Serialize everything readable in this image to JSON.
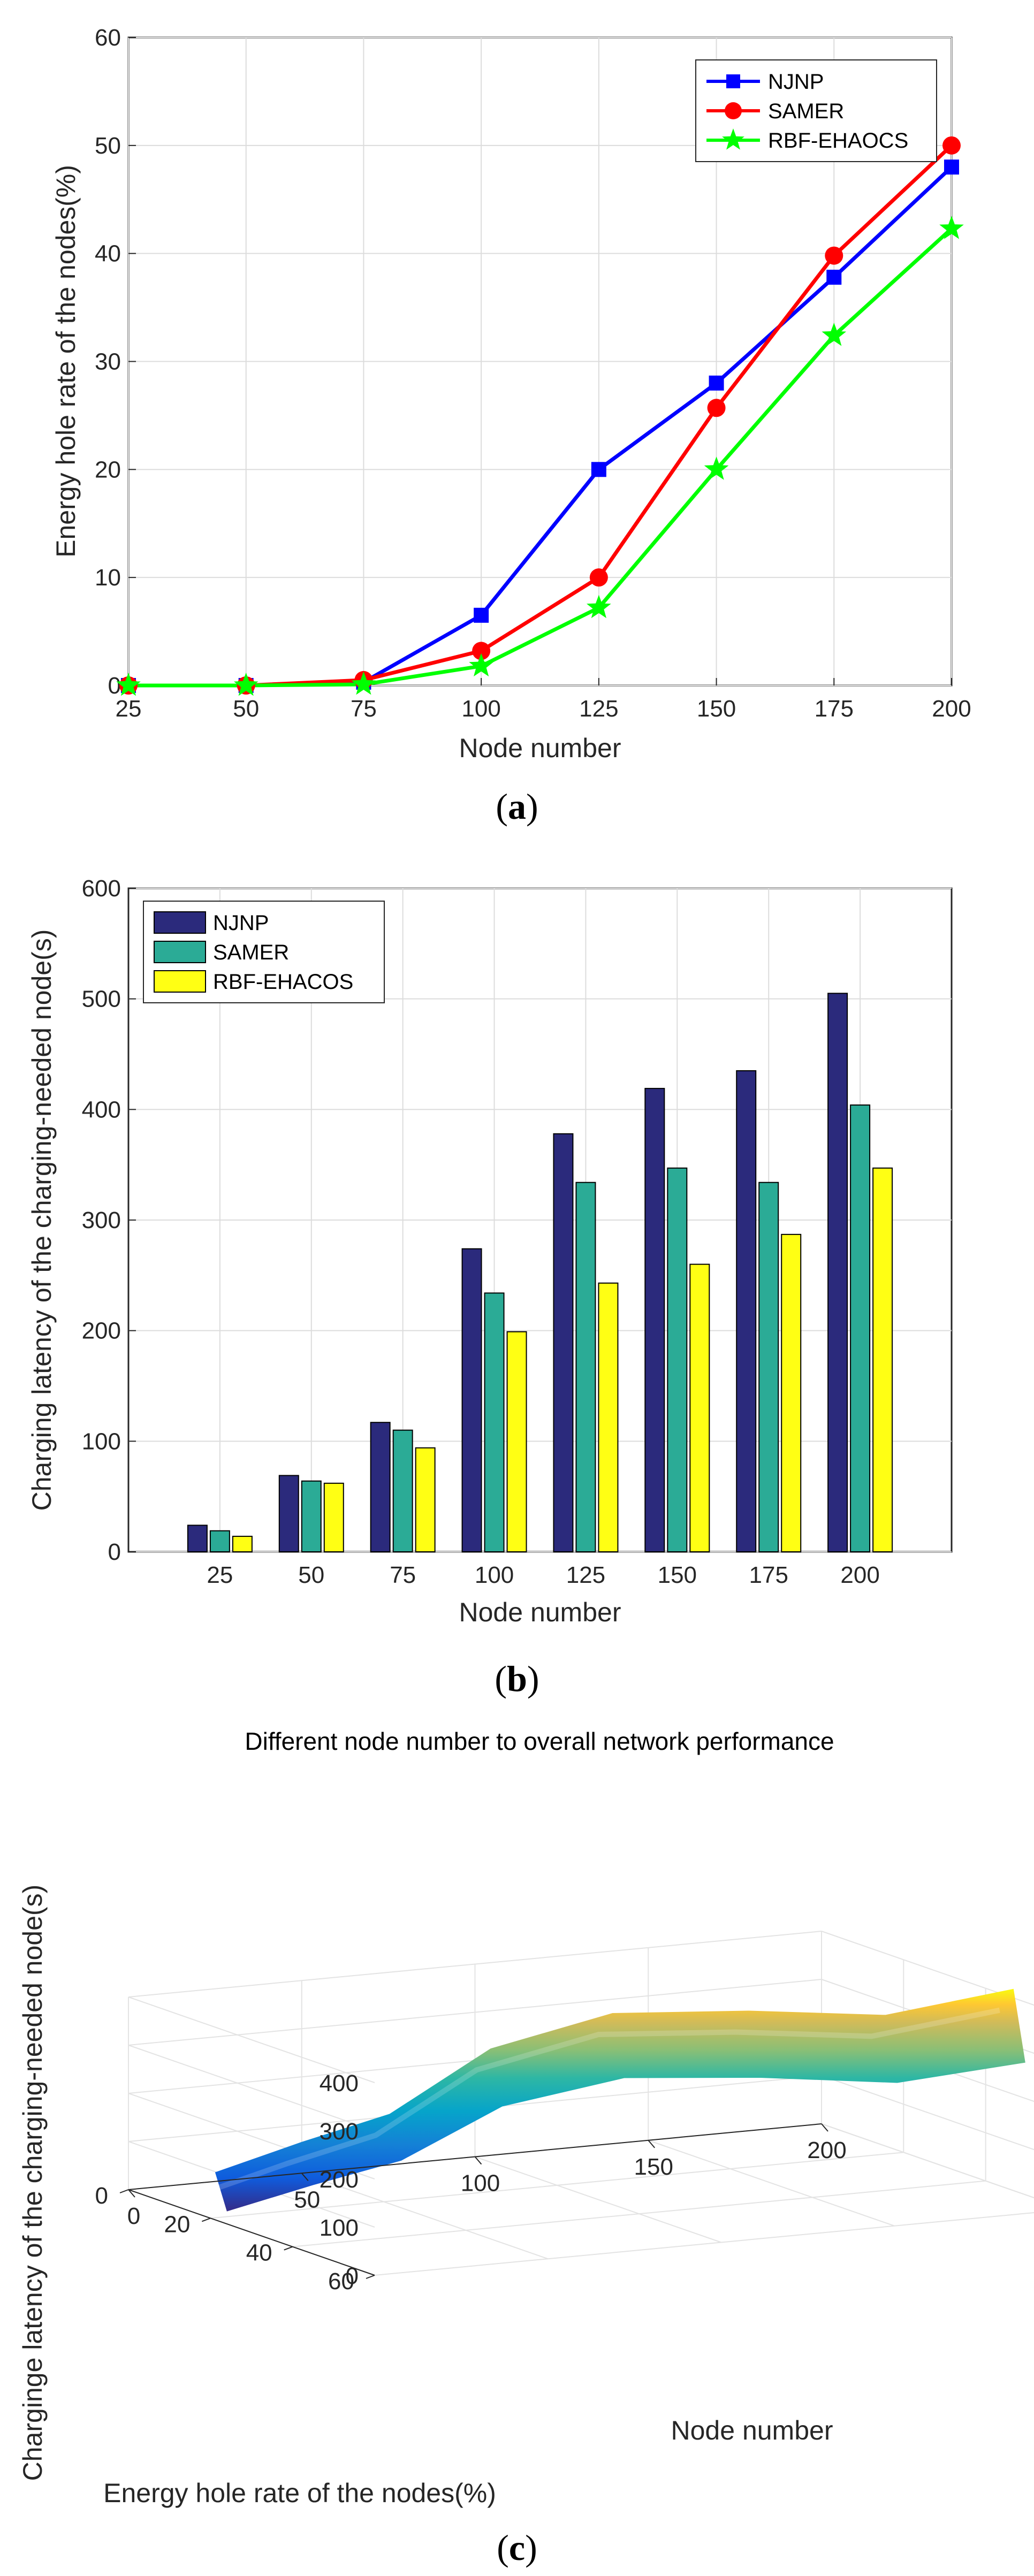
{
  "chart_data": [
    {
      "type": "line",
      "panel": "a",
      "caption": "a",
      "xlabel": "Node number",
      "ylabel": "Energy hole rate of the nodes(%)",
      "x": [
        25,
        50,
        75,
        100,
        125,
        150,
        175,
        200
      ],
      "x_ticks": [
        "25",
        "50",
        "75",
        "100",
        "125",
        "150",
        "175",
        "200"
      ],
      "y_ticks": [
        "0",
        "10",
        "20",
        "30",
        "40",
        "50",
        "60"
      ],
      "xlim": [
        25,
        200
      ],
      "ylim": [
        0,
        60
      ],
      "grid": true,
      "legend_position": "top-right",
      "series": [
        {
          "name": "NJNP",
          "color": "#0000ff",
          "marker": "square",
          "values": [
            0,
            0,
            0.3,
            6.5,
            20,
            28,
            37.8,
            48
          ]
        },
        {
          "name": "SAMER",
          "color": "#ff0000",
          "marker": "circle",
          "values": [
            0,
            0,
            0.5,
            3.2,
            10,
            25.7,
            39.8,
            50
          ]
        },
        {
          "name": "RBF-EHAOCS",
          "color": "#00ff00",
          "marker": "star",
          "values": [
            0,
            0,
            0.1,
            1.8,
            7.2,
            20,
            32.4,
            42.3
          ]
        }
      ]
    },
    {
      "type": "bar",
      "panel": "b",
      "caption": "b",
      "xlabel": "Node number",
      "ylabel": "Charging latency of the charging-needed node(s)",
      "categories": [
        "25",
        "50",
        "75",
        "100",
        "125",
        "150",
        "175",
        "200"
      ],
      "y_ticks": [
        "0",
        "100",
        "200",
        "300",
        "400",
        "500",
        "600"
      ],
      "ylim": [
        0,
        600
      ],
      "grid": true,
      "legend_position": "top-left",
      "series": [
        {
          "name": "NJNP",
          "color": "#2b2a7c",
          "values": [
            24,
            69,
            117,
            274,
            378,
            419,
            435,
            505
          ]
        },
        {
          "name": "SAMER",
          "color": "#2bab96",
          "values": [
            19,
            64,
            110,
            234,
            334,
            347,
            334,
            404
          ]
        },
        {
          "name": "RBF-EHACOS",
          "color": "#ffff14",
          "values": [
            14,
            62,
            94,
            199,
            243,
            260,
            287,
            347
          ]
        }
      ]
    },
    {
      "type": "surface3d",
      "panel": "c",
      "caption": "c",
      "title": "Different node number to overall network performance",
      "xlabel": "Energy hole rate of the nodes(%)",
      "ylabel": "Node number",
      "zlabel": "Charginge latency of the charging-needed node(s)",
      "x_ticks": [
        "0",
        "20",
        "40",
        "60"
      ],
      "y_ticks": [
        "0",
        "50",
        "100",
        "150",
        "200"
      ],
      "z_ticks": [
        "0",
        "100",
        "200",
        "300",
        "400"
      ],
      "xlim": [
        0,
        60
      ],
      "ylim": [
        0,
        200
      ],
      "zlim": [
        0,
        400
      ],
      "colormap": "parula",
      "surface_points": [
        {
          "node_number": 25,
          "energy_hole_rate": 0,
          "latency": 19
        },
        {
          "node_number": 50,
          "energy_hole_rate": 0,
          "latency": 65
        },
        {
          "node_number": 75,
          "energy_hole_rate": 0.3,
          "latency": 107
        },
        {
          "node_number": 100,
          "energy_hole_rate": 3.8,
          "latency": 236
        },
        {
          "node_number": 125,
          "energy_hole_rate": 12.4,
          "latency": 318
        },
        {
          "node_number": 150,
          "energy_hole_rate": 24.6,
          "latency": 342
        },
        {
          "node_number": 175,
          "energy_hole_rate": 36.7,
          "latency": 352
        },
        {
          "node_number": 200,
          "energy_hole_rate": 46.8,
          "latency": 419
        }
      ]
    }
  ]
}
